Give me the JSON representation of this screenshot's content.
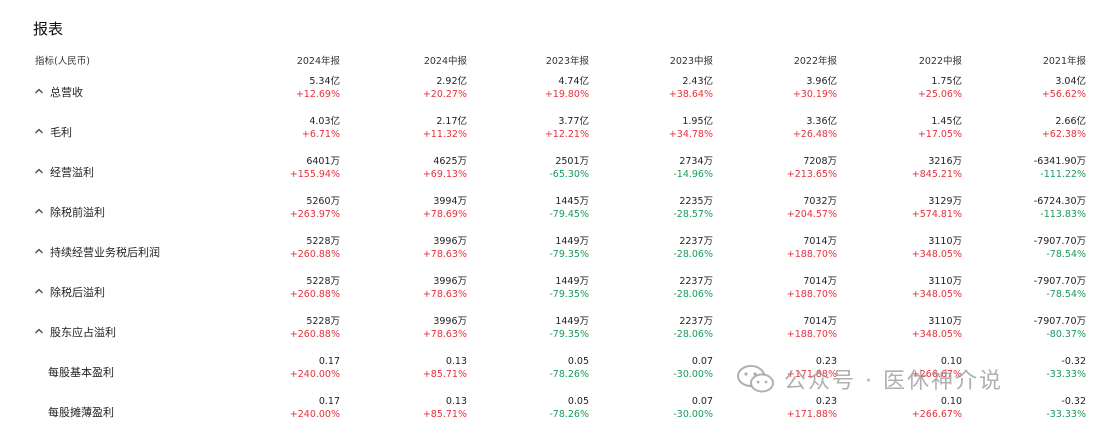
{
  "title": "报表",
  "header": {
    "metric_label": "指标(人民币)",
    "columns": [
      "2024年报",
      "2024中报",
      "2023年报",
      "2023中报",
      "2022年报",
      "2022中报",
      "2021年报"
    ]
  },
  "rows": [
    {
      "label": "总营收",
      "expandable": true,
      "values": [
        "5.34亿",
        "2.92亿",
        "4.74亿",
        "2.43亿",
        "3.96亿",
        "1.75亿",
        "3.04亿"
      ],
      "changes": [
        "+12.69%",
        "+20.27%",
        "+19.80%",
        "+38.64%",
        "+30.19%",
        "+25.06%",
        "+56.62%"
      ]
    },
    {
      "label": "毛利",
      "expandable": true,
      "values": [
        "4.03亿",
        "2.17亿",
        "3.77亿",
        "1.95亿",
        "3.36亿",
        "1.45亿",
        "2.66亿"
      ],
      "changes": [
        "+6.71%",
        "+11.32%",
        "+12.21%",
        "+34.78%",
        "+26.48%",
        "+17.05%",
        "+62.38%"
      ]
    },
    {
      "label": "经营溢利",
      "expandable": true,
      "values": [
        "6401万",
        "4625万",
        "2501万",
        "2734万",
        "7208万",
        "3216万",
        "-6341.90万"
      ],
      "changes": [
        "+155.94%",
        "+69.13%",
        "-65.30%",
        "-14.96%",
        "+213.65%",
        "+845.21%",
        "-111.22%"
      ]
    },
    {
      "label": "除税前溢利",
      "expandable": true,
      "values": [
        "5260万",
        "3994万",
        "1445万",
        "2235万",
        "7032万",
        "3129万",
        "-6724.30万"
      ],
      "changes": [
        "+263.97%",
        "+78.69%",
        "-79.45%",
        "-28.57%",
        "+204.57%",
        "+574.81%",
        "-113.83%"
      ]
    },
    {
      "label": "持续经营业务税后利润",
      "expandable": true,
      "values": [
        "5228万",
        "3996万",
        "1449万",
        "2237万",
        "7014万",
        "3110万",
        "-7907.70万"
      ],
      "changes": [
        "+260.88%",
        "+78.63%",
        "-79.35%",
        "-28.06%",
        "+188.70%",
        "+348.05%",
        "-78.54%"
      ]
    },
    {
      "label": "除税后溢利",
      "expandable": true,
      "values": [
        "5228万",
        "3996万",
        "1449万",
        "2237万",
        "7014万",
        "3110万",
        "-7907.70万"
      ],
      "changes": [
        "+260.88%",
        "+78.63%",
        "-79.35%",
        "-28.06%",
        "+188.70%",
        "+348.05%",
        "-78.54%"
      ]
    },
    {
      "label": "股东应占溢利",
      "expandable": true,
      "values": [
        "5228万",
        "3996万",
        "1449万",
        "2237万",
        "7014万",
        "3110万",
        "-7907.70万"
      ],
      "changes": [
        "+260.88%",
        "+78.63%",
        "-79.35%",
        "-28.06%",
        "+188.70%",
        "+348.05%",
        "-80.37%"
      ]
    },
    {
      "label": "每股基本盈利",
      "expandable": false,
      "values": [
        "0.17",
        "0.13",
        "0.05",
        "0.07",
        "0.23",
        "0.10",
        "-0.32"
      ],
      "changes": [
        "+240.00%",
        "+85.71%",
        "-78.26%",
        "-30.00%",
        "+171.88%",
        "+266.67%",
        "-33.33%"
      ]
    },
    {
      "label": "每股摊薄盈利",
      "expandable": false,
      "values": [
        "0.17",
        "0.13",
        "0.05",
        "0.07",
        "0.23",
        "0.10",
        "-0.32"
      ],
      "changes": [
        "+240.00%",
        "+85.71%",
        "-78.26%",
        "-30.00%",
        "+171.88%",
        "+266.67%",
        "-33.33%"
      ]
    }
  ],
  "watermark": {
    "text": "公众号 · 医休神介说",
    "icon": "wechat-icon"
  },
  "colors": {
    "up": "#e5323e",
    "down": "#1a9a5c",
    "text": "#222222"
  }
}
